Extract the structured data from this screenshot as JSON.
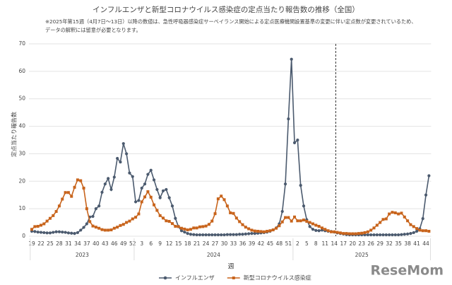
{
  "chart_data": {
    "type": "line",
    "title": "インフルエンザと新型コロナウイルス感染症の定点当たり報告数の推移（全国）",
    "notes": [
      "※2025年第15週（4月7日～13日）以降の数値は、急性呼吸器感染症サーベイランス開始による定点医療機関設置基準の変更に伴い定点数が変更されているため、",
      "データの解釈には留意が必要となります。"
    ],
    "y_label": "定点当たり報告数",
    "x_label": "週",
    "x_groups": [
      "2023",
      "2024",
      "2025"
    ],
    "watermark": "ReseMom",
    "categories": [
      "19",
      null,
      null,
      "22",
      null,
      null,
      "25",
      null,
      null,
      "28",
      null,
      null,
      "31",
      null,
      null,
      "34",
      null,
      null,
      "37",
      null,
      null,
      "40",
      null,
      null,
      "43",
      null,
      null,
      "46",
      null,
      null,
      "49",
      null,
      null,
      "52",
      null,
      null,
      "3",
      null,
      null,
      "6",
      null,
      null,
      "9",
      null,
      null,
      "12",
      null,
      null,
      "15",
      null,
      null,
      "18",
      null,
      null,
      "21",
      null,
      null,
      "24",
      null,
      null,
      "27",
      null,
      null,
      "30",
      null,
      null,
      "33",
      null,
      null,
      "36",
      null,
      null,
      "39",
      null,
      null,
      "42",
      null,
      null,
      "45",
      null,
      null,
      "48",
      null,
      null,
      "51",
      null,
      null,
      "2",
      null,
      null,
      "5",
      null,
      null,
      "8",
      null,
      null,
      "11",
      null,
      null,
      "14",
      null,
      null,
      "17",
      null,
      null,
      "20",
      null,
      null,
      "23",
      null,
      null,
      "26",
      null,
      null,
      "29",
      null,
      null,
      "32",
      null,
      null,
      "35",
      null,
      null,
      "38",
      null,
      null,
      "41",
      null,
      null,
      "44",
      null
    ],
    "series": [
      {
        "name": "インフルエンザ",
        "color": "#4b5a6e",
        "marker": "circle",
        "values": [
          1.8,
          1.7,
          1.5,
          1.4,
          1.3,
          1.2,
          1.2,
          1.4,
          1.6,
          1.6,
          1.5,
          1.4,
          1.2,
          1.1,
          1.0,
          1.3,
          2.2,
          3.2,
          4.5,
          7.0,
          7.2,
          10,
          11,
          16,
          19,
          21,
          17,
          21.5,
          28.3,
          27,
          33.7,
          30,
          23,
          21.7,
          12.5,
          13,
          17.5,
          19,
          22.5,
          24,
          20.5,
          17,
          14,
          16.5,
          17,
          14,
          11,
          6.5,
          3.5,
          2,
          1.5,
          1,
          0.7,
          0.6,
          0.5,
          0.5,
          0.5,
          0.5,
          0.5,
          0.5,
          0.5,
          0.5,
          0.5,
          0.5,
          0.6,
          0.6,
          0.6,
          0.6,
          0.7,
          0.7,
          0.8,
          0.9,
          1.0,
          1.0,
          1.1,
          1.2,
          1.3,
          1.5,
          1.8,
          2.3,
          3.0,
          4.5,
          9,
          19,
          42.7,
          64.4,
          34,
          35,
          18.5,
          11,
          6,
          3.5,
          2.5,
          2.1,
          2.0,
          2.2,
          2.0,
          1.8,
          1.7,
          1.5,
          1.2,
          1.0,
          0.8,
          0.6,
          0.5,
          0.5,
          0.5,
          0.5,
          0.5,
          0.5,
          0.5,
          0.5,
          0.5,
          0.5,
          0.5,
          0.5,
          0.5,
          0.5,
          0.5,
          0.5,
          0.5,
          0.6,
          0.7,
          0.8,
          1.0,
          1.3,
          1.8,
          2.7,
          6.4,
          15,
          22
        ]
      },
      {
        "name": "新型コロナウイルス感染症",
        "color": "#c8641c",
        "marker": "square",
        "values": [
          2.5,
          3.5,
          3.6,
          4.0,
          4.5,
          5.5,
          6.5,
          7.5,
          9.0,
          11.0,
          13.5,
          15.9,
          15.9,
          14.5,
          17.8,
          20.5,
          20.2,
          17.5,
          10.0,
          5.3,
          3.7,
          3.3,
          2.9,
          2.4,
          2.2,
          2.2,
          2.3,
          2.9,
          3.3,
          3.9,
          4.3,
          5.0,
          5.5,
          6.3,
          6.9,
          8.1,
          12.5,
          14.3,
          16.2,
          14.2,
          11.4,
          9.4,
          7.5,
          6.6,
          5.6,
          5.4,
          4.6,
          3.6,
          3.5,
          2.9,
          2.6,
          2.3,
          2.5,
          3.0,
          3.0,
          3.4,
          3.5,
          3.7,
          4.3,
          5.5,
          8.2,
          13.6,
          14.6,
          13.3,
          11.0,
          8.5,
          8.3,
          6.6,
          5.3,
          4.2,
          3.3,
          2.7,
          2.2,
          1.9,
          1.8,
          1.7,
          1.6,
          1.8,
          2.0,
          2.3,
          2.9,
          3.8,
          5.2,
          6.8,
          6.8,
          5.5,
          7.0,
          5.6,
          5.6,
          5.9,
          5.4,
          5.0,
          4.5,
          4.0,
          3.6,
          3.0,
          2.5,
          2.0,
          1.6,
          1.6,
          1.4,
          1.2,
          1.0,
          1.0,
          0.9,
          0.9,
          0.9,
          1.0,
          1.1,
          1.3,
          1.6,
          2.2,
          3.0,
          4.0,
          5.0,
          6.1,
          6.3,
          8.1,
          8.7,
          8.5,
          8.1,
          8.4,
          7.0,
          5.6,
          4.2,
          3.5,
          2.8,
          2.2,
          2.0,
          2.0,
          1.8
        ]
      }
    ],
    "ylim": [
      0,
      70
    ],
    "yticks": [
      0,
      10,
      20,
      30,
      40,
      50,
      60,
      70
    ],
    "grid": true,
    "legend": "bottom"
  }
}
